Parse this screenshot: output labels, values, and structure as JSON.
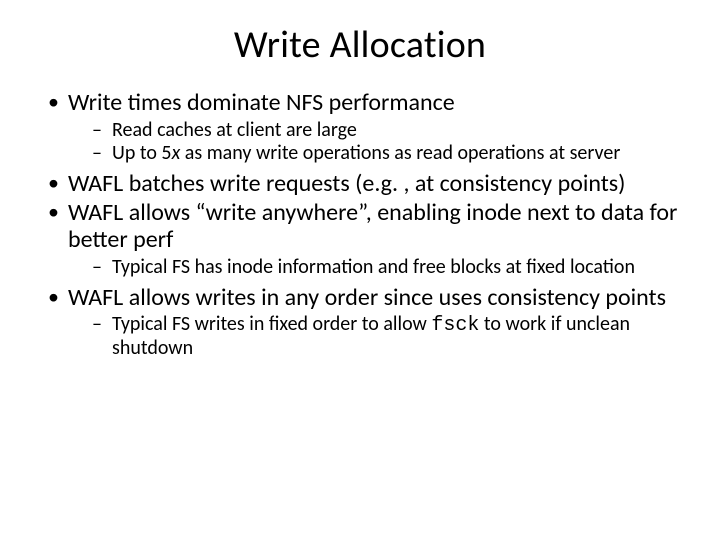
{
  "title": "Write Allocation",
  "b1": "Write times dominate NFS performance",
  "s1a": "Read caches at client are large",
  "s1b_pre": "Up to 5",
  "s1b_x": "x",
  "s1b_post": " as many write operations as read operations at server",
  "b2": "WAFL batches write requests (e.g. , at consistency points)",
  "b3": "WAFL allows “write anywhere”, enabling inode next to data for better perf",
  "s3a": "Typical FS has inode information and free blocks at fixed location",
  "b4": "WAFL allows writes in any order since uses consistency points",
  "s4a_pre": "Typical FS writes in fixed order to allow ",
  "s4a_code": "fsck",
  "s4a_post": " to work if unclean shutdown"
}
